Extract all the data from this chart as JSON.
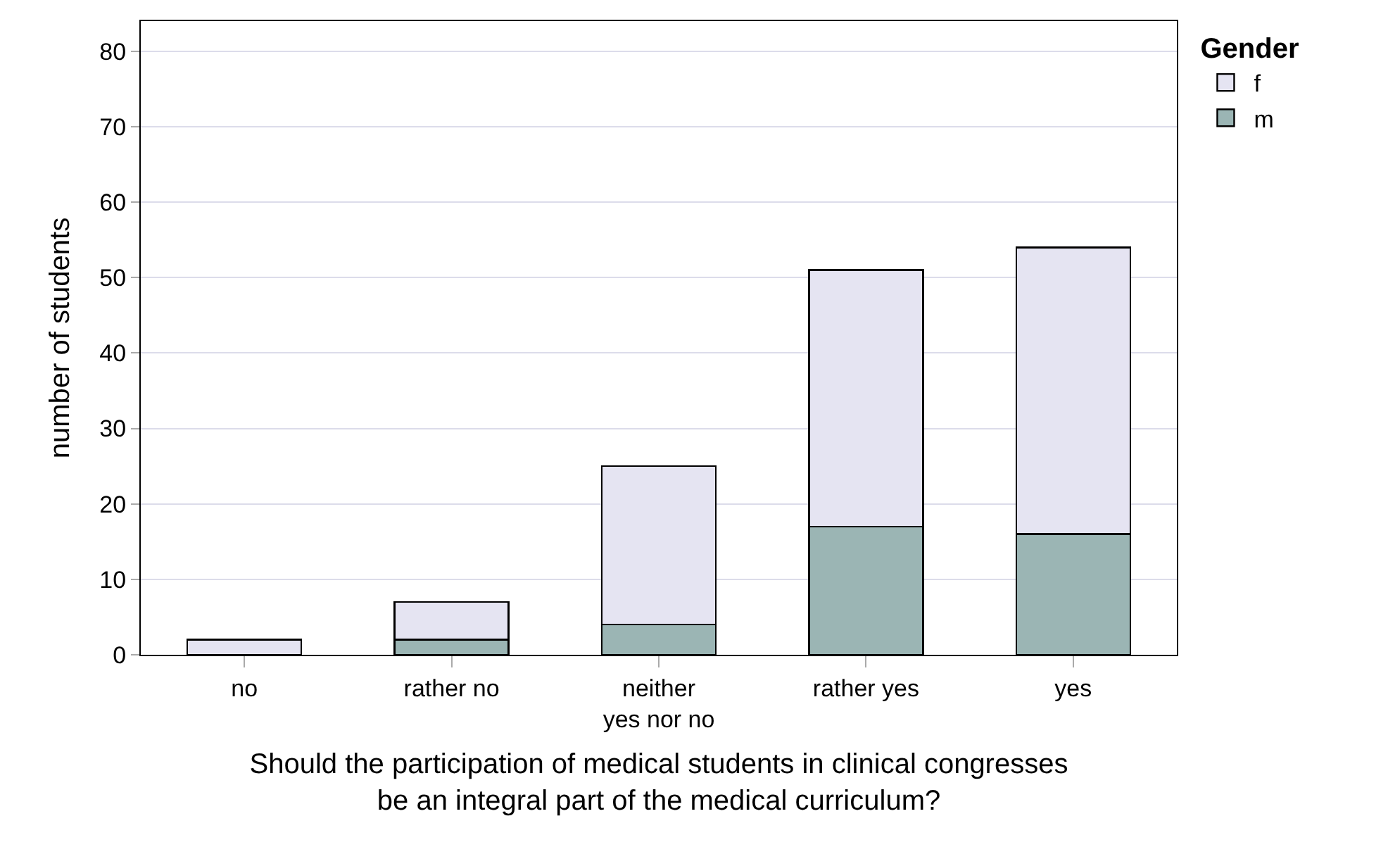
{
  "chart_data": {
    "type": "bar",
    "stacked": true,
    "xlabel": "Should the participation of medical students in clinical congresses\nbe an integral part of the medical curriculum?",
    "ylabel": "number of students",
    "legend_title": "Gender",
    "categories": [
      "no",
      "rather no",
      "neither\nyes nor no",
      "rather yes",
      "yes"
    ],
    "series": [
      {
        "name": "m",
        "color": "#9bb5b4",
        "values": [
          0,
          2,
          4,
          17,
          16
        ]
      },
      {
        "name": "f",
        "color": "#e5e4f2",
        "values": [
          2,
          5,
          21,
          34,
          38
        ]
      }
    ],
    "ylim": [
      0,
      84
    ],
    "yticks": [
      0,
      10,
      20,
      30,
      40,
      50,
      60,
      70,
      80
    ],
    "grid": "y",
    "legend": "top right"
  }
}
